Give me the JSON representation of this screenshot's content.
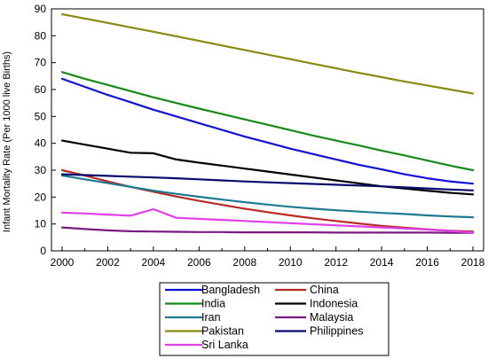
{
  "chart_data": {
    "type": "line",
    "ylabel": "Infant Mortality Rate (Per 1000 live Births)",
    "xlabel": "",
    "xlim": [
      2000,
      2018
    ],
    "ylim": [
      0,
      90
    ],
    "x_ticks": [
      "2000",
      "2002",
      "2004",
      "2006",
      "2008",
      "2010",
      "2012",
      "2014",
      "2016",
      "2018"
    ],
    "y_ticks": [
      "0",
      "10",
      "20",
      "30",
      "40",
      "50",
      "60",
      "70",
      "80",
      "90"
    ],
    "grid": false,
    "legend_position": "bottom",
    "x": [
      2000,
      2001,
      2002,
      2003,
      2004,
      2005,
      2006,
      2007,
      2008,
      2009,
      2010,
      2011,
      2012,
      2013,
      2014,
      2015,
      2016,
      2017,
      2018
    ],
    "series": [
      {
        "name": "Bangladesh",
        "color": "#1010d8",
        "values": [
          64,
          61,
          58,
          55.3,
          52.5,
          50,
          47.5,
          45,
          42.5,
          40.3,
          38,
          36,
          34,
          32,
          30.3,
          28.5,
          27,
          25.8,
          25
        ]
      },
      {
        "name": "China",
        "color": "#b82a22",
        "values": [
          30,
          28,
          25.8,
          23.8,
          22,
          20.2,
          18.6,
          17.1,
          15.7,
          14.4,
          13.2,
          12.1,
          11.1,
          10.2,
          9.3,
          8.6,
          8,
          7.5,
          7.2
        ]
      },
      {
        "name": "India",
        "color": "#178a17",
        "values": [
          66.5,
          64,
          61.7,
          59.4,
          57.1,
          55,
          52.9,
          50.9,
          48.9,
          46.9,
          44.9,
          42.9,
          41,
          39.2,
          37.3,
          35.5,
          33.6,
          31.7,
          30
        ]
      },
      {
        "name": "Indonesia",
        "color": "#000000",
        "values": [
          41,
          39.5,
          38,
          36.5,
          36.3,
          34,
          32.8,
          31.7,
          30.6,
          29.5,
          28.4,
          27.3,
          26.2,
          25.1,
          24,
          23.2,
          22.4,
          21.6,
          21
        ]
      },
      {
        "name": "Iran",
        "color": "#1f7a90",
        "values": [
          28,
          26.6,
          25.2,
          23.8,
          22.4,
          21.2,
          20.1,
          19.1,
          18.1,
          17.2,
          16.4,
          15.7,
          15.1,
          14.6,
          14.1,
          13.7,
          13.2,
          12.8,
          12.5
        ]
      },
      {
        "name": "Malaysia",
        "color": "#7a1a80",
        "values": [
          8.7,
          8.1,
          7.6,
          7.3,
          7.2,
          7.1,
          7,
          7,
          6.9,
          6.9,
          6.9,
          6.9,
          6.8,
          6.8,
          6.8,
          6.8,
          6.8,
          6.7,
          6.7
        ]
      },
      {
        "name": "Pakistan",
        "color": "#8a8a10",
        "values": [
          88,
          86.4,
          84.8,
          83.1,
          81.5,
          79.8,
          78.1,
          76.4,
          74.7,
          73,
          71.3,
          69.6,
          67.9,
          66.2,
          64.6,
          63,
          61.5,
          60,
          58.5
        ]
      },
      {
        "name": "Philippines",
        "color": "#0a0a6e",
        "values": [
          28.5,
          28.2,
          27.9,
          27.6,
          27.3,
          27,
          26.6,
          26.2,
          25.8,
          25.5,
          25.2,
          24.9,
          24.6,
          24.3,
          24,
          23.6,
          23.2,
          22.8,
          22.5
        ]
      },
      {
        "name": "Sri Lanka",
        "color": "#e040e8",
        "values": [
          14.2,
          13.9,
          13.5,
          13.1,
          15.5,
          12.3,
          11.9,
          11.5,
          11.1,
          10.7,
          10.3,
          9.9,
          9.5,
          9.1,
          8.7,
          8.3,
          7.9,
          7.4,
          6.8
        ]
      }
    ]
  }
}
